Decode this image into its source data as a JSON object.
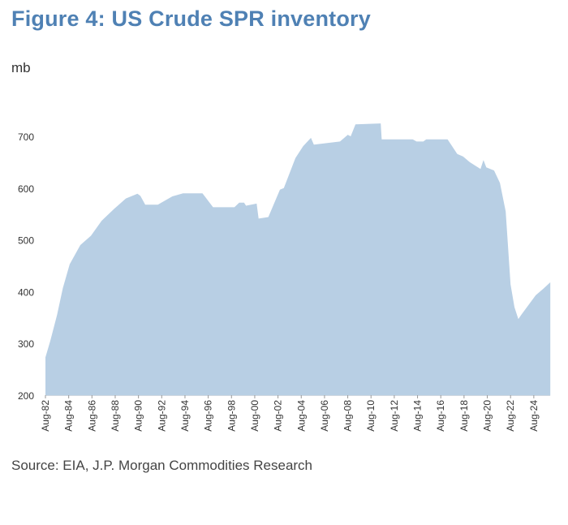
{
  "chart_data": {
    "type": "area",
    "title": "Figure 4: US Crude SPR inventory",
    "ylabel": "mb",
    "xlabel": "",
    "source": "Source: EIA, J.P. Morgan Commodities Research",
    "ylim": [
      200,
      700
    ],
    "yticks": [
      200,
      300,
      400,
      500,
      600,
      700
    ],
    "xticks": [
      "Aug-82",
      "Aug-84",
      "Aug-86",
      "Aug-88",
      "Aug-90",
      "Aug-92",
      "Aug-94",
      "Aug-96",
      "Aug-98",
      "Aug-00",
      "Aug-02",
      "Aug-04",
      "Aug-06",
      "Aug-08",
      "Aug-10",
      "Aug-12",
      "Aug-14",
      "Aug-16",
      "Aug-18",
      "Aug-20",
      "Aug-22",
      "Aug-24"
    ],
    "grid": false,
    "fill_color": "#b8cfe4",
    "title_color": "#4f81b4",
    "series": [
      {
        "x": [
          "1982-08",
          "1983-01",
          "1983-08",
          "1984-02",
          "1984-09",
          "1985-08",
          "1986-07",
          "1987-06",
          "1988-07",
          "1989-07",
          "1990-07",
          "1990-10",
          "1991-03",
          "1992-04",
          "1993-07",
          "1994-06",
          "1996-02",
          "1997-01",
          "1998-11",
          "1999-04",
          "1999-09",
          "1999-11",
          "2000-10",
          "2000-12",
          "2001-10",
          "2002-10",
          "2003-02",
          "2004-02",
          "2004-10",
          "2005-06",
          "2005-09",
          "2007-12",
          "2008-08",
          "2008-11",
          "2009-04",
          "2011-06",
          "2011-07",
          "2014-03",
          "2014-07",
          "2015-02",
          "2015-05",
          "2017-03",
          "2018-01",
          "2018-07",
          "2019-02",
          "2020-01",
          "2020-04",
          "2020-07",
          "2021-03",
          "2021-09",
          "2022-03",
          "2022-08",
          "2022-12",
          "2023-04",
          "2023-07",
          "2024-10",
          "2025-06",
          "2026-01"
        ],
        "y": [
          273,
          305,
          355,
          407,
          453,
          490,
          508,
          537,
          560,
          580,
          589,
          585,
          568,
          568,
          584,
          590,
          590,
          563,
          563,
          572,
          572,
          566,
          570,
          541,
          544,
          597,
          600,
          658,
          681,
          697,
          684,
          690,
          703,
          700,
          723,
          725,
          694,
          694,
          690,
          690,
          694,
          694,
          666,
          661,
          650,
          637,
          654,
          640,
          634,
          610,
          555,
          414,
          370,
          347,
          355,
          393,
          406,
          418
        ]
      }
    ]
  }
}
